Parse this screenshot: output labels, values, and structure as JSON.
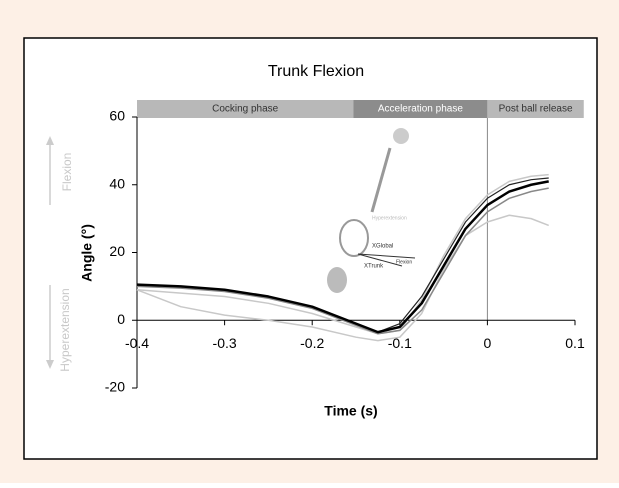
{
  "chart_data": {
    "type": "line",
    "title": "Trunk Flexion",
    "xlabel": "Time (s)",
    "ylabel": "Angle (°)",
    "xlim": [
      -0.4,
      0.1
    ],
    "ylim": [
      -20,
      60
    ],
    "xticks": [
      -0.4,
      -0.3,
      -0.2,
      -0.1,
      0,
      0.1
    ],
    "yticks": [
      -20,
      0,
      20,
      40,
      60
    ],
    "phases": [
      {
        "label": "Cocking phase",
        "start": -0.4,
        "end": -0.153,
        "color": "#b8b8b8"
      },
      {
        "label": "Acceleration phase",
        "start": -0.153,
        "end": 0,
        "color": "#8c8c8c"
      },
      {
        "label": "Post ball release",
        "start": 0,
        "end": 0.11,
        "color": "#b8b8b8"
      }
    ],
    "side_labels": {
      "up": "Flexion",
      "down": "Hyperextension"
    },
    "inset_labels": [
      "Hyperextension",
      "XGlobal",
      "XTrunk",
      "Flexion"
    ],
    "x": [
      -0.4,
      -0.35,
      -0.3,
      -0.25,
      -0.2,
      -0.15,
      -0.125,
      -0.1,
      -0.075,
      -0.05,
      -0.025,
      0,
      0.025,
      0.05,
      0.07
    ],
    "series": [
      {
        "color": "#c8c8c8",
        "width": 1.5,
        "values": [
          9,
          4,
          1.5,
          0,
          -2,
          -5,
          -6,
          -5,
          2,
          15,
          25,
          29,
          31,
          30,
          28
        ]
      },
      {
        "color": "#c8c8c8",
        "width": 1.5,
        "values": [
          9,
          8,
          7,
          5,
          2,
          -2,
          -4,
          -3,
          6,
          19,
          30,
          37,
          41,
          42.5,
          43
        ]
      },
      {
        "color": "#888888",
        "width": 1.5,
        "values": [
          10,
          9.5,
          8.5,
          6.5,
          3.5,
          -1.5,
          -4,
          -3,
          3,
          14,
          25,
          32,
          36,
          38,
          39
        ]
      },
      {
        "color": "#222222",
        "width": 1.2,
        "values": [
          10.5,
          10,
          9,
          7,
          4,
          -1,
          -3.5,
          -1,
          7,
          18,
          29,
          36,
          40,
          41.5,
          42
        ]
      },
      {
        "color": "#000000",
        "width": 2.5,
        "values": [
          10.5,
          10,
          9,
          7,
          4,
          -1,
          -3.5,
          -2,
          5,
          16,
          27,
          34,
          38,
          40,
          41
        ]
      }
    ]
  }
}
